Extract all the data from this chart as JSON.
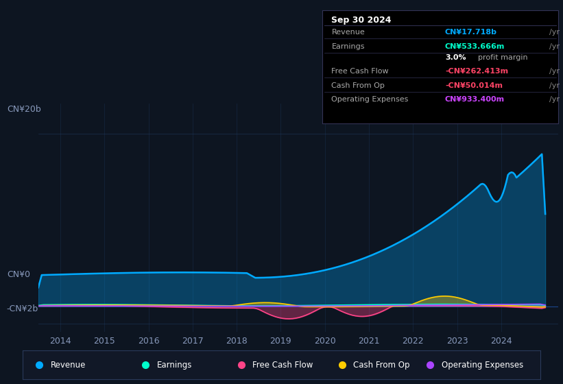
{
  "background_color": "#0d1521",
  "chart_bg": "#0d1521",
  "grid_color": "#1e3a5f",
  "title_box": {
    "date": "Sep 30 2024",
    "rows": [
      {
        "label": "Revenue",
        "value": "CN¥17.718b",
        "value_color": "#00aaff",
        "suffix": "/yr"
      },
      {
        "label": "Earnings",
        "value": "CN¥533.666m",
        "value_color": "#00ffcc",
        "suffix": "/yr"
      },
      {
        "label": "",
        "value": "3.0%",
        "value_color": "#ffffff",
        "suffix": "profit margin"
      },
      {
        "label": "Free Cash Flow",
        "value": "-CN¥262.413m",
        "value_color": "#ff4466",
        "suffix": "/yr"
      },
      {
        "label": "Cash From Op",
        "value": "-CN¥50.014m",
        "value_color": "#ff4466",
        "suffix": "/yr"
      },
      {
        "label": "Operating Expenses",
        "value": "CN¥933.400m",
        "value_color": "#cc44ff",
        "suffix": "/yr"
      }
    ]
  },
  "ylabel_top": "CN¥20b",
  "ylabel_zero": "CN¥0",
  "ylabel_neg": "-CN¥2b",
  "x_ticks": [
    2014,
    2015,
    2016,
    2017,
    2018,
    2019,
    2020,
    2021,
    2022,
    2023,
    2024
  ],
  "legend": [
    {
      "label": "Revenue",
      "color": "#00aaff"
    },
    {
      "label": "Earnings",
      "color": "#00ffcc"
    },
    {
      "label": "Free Cash Flow",
      "color": "#ff4488"
    },
    {
      "label": "Cash From Op",
      "color": "#ffcc00"
    },
    {
      "label": "Operating Expenses",
      "color": "#aa44ff"
    }
  ],
  "revenue_color": "#00aaff",
  "earnings_color": "#00ffcc",
  "fcf_color": "#ff4488",
  "cashop_color": "#ffcc00",
  "opex_color": "#aa44ff"
}
